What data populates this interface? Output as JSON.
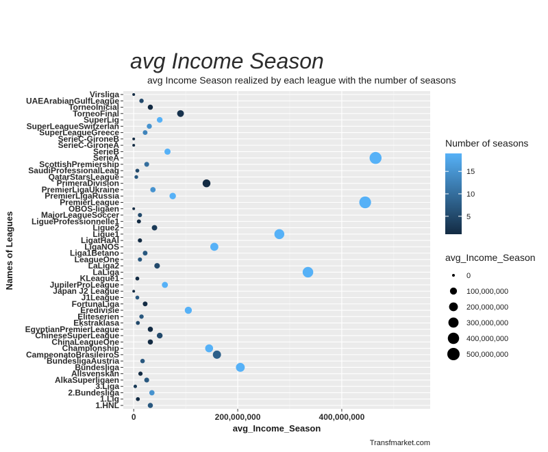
{
  "chart_data": {
    "type": "scatter",
    "title": "avg Income Season",
    "subtitle": "avg Income Season realized by each league with the number of seasons",
    "xlabel": "avg_Income_Season",
    "ylabel": "Names of Leagues",
    "caption": "Transfmarket.com",
    "xlim": [
      -20000000,
      570000000
    ],
    "x_ticks": [
      0,
      200000000,
      400000000
    ],
    "x_tick_labels": [
      "0",
      "200,000,000",
      "400,000,000"
    ],
    "grid": true,
    "legend_position": "right",
    "color_legend": {
      "title": "Number of seasons",
      "range": [
        1,
        19
      ],
      "ticks": [
        5,
        10,
        15
      ],
      "tick_labels": [
        "5",
        "10",
        "15"
      ],
      "low_color": "#132B43",
      "high_color": "#56B1F7"
    },
    "size_legend": {
      "title": "avg_Income_Season",
      "values": [
        0,
        100000000,
        200000000,
        300000000,
        400000000,
        500000000
      ],
      "labels": [
        "0",
        "100,000,000",
        "200,000,000",
        "300,000,000",
        "400,000,000",
        "500,000,000"
      ]
    },
    "points": [
      {
        "league": "Virsliga",
        "x": 0,
        "seasons": 1
      },
      {
        "league": "UAEArabianGulfLeague",
        "x": 15000000,
        "seasons": 5
      },
      {
        "league": "TorneoInicial",
        "x": 32000000,
        "seasons": 1
      },
      {
        "league": "TorneoFinal",
        "x": 90000000,
        "seasons": 2
      },
      {
        "league": "SuperLig",
        "x": 50000000,
        "seasons": 19
      },
      {
        "league": "SuperLeagueSwitzerlan",
        "x": 30000000,
        "seasons": 15
      },
      {
        "league": "SuperLeagueGreece",
        "x": 22000000,
        "seasons": 13
      },
      {
        "league": "SerieC-GironeB",
        "x": 0,
        "seasons": 1
      },
      {
        "league": "SerieC-GironeA",
        "x": 0,
        "seasons": 1
      },
      {
        "league": "SerieB",
        "x": 65000000,
        "seasons": 19
      },
      {
        "league": "SerieA",
        "x": 465000000,
        "seasons": 19
      },
      {
        "league": "ScottishPremiership",
        "x": 25000000,
        "seasons": 10
      },
      {
        "league": "SaudiProfessionalLeag",
        "x": 7000000,
        "seasons": 5
      },
      {
        "league": "QatarStarsLeague",
        "x": 5000000,
        "seasons": 7
      },
      {
        "league": "PrimeraDivision",
        "x": 140000000,
        "seasons": 1
      },
      {
        "league": "PremierLigaUkraine",
        "x": 37000000,
        "seasons": 15
      },
      {
        "league": "PremierLigaRussia",
        "x": 75000000,
        "seasons": 19
      },
      {
        "league": "PremierLeague",
        "x": 445000000,
        "seasons": 19
      },
      {
        "league": "OBOS-ligaen",
        "x": 0,
        "seasons": 1
      },
      {
        "league": "MajorLeagueSoccer",
        "x": 12000000,
        "seasons": 5
      },
      {
        "league": "LigueProfessionnelle1",
        "x": 10000000,
        "seasons": 1
      },
      {
        "league": "Ligue2",
        "x": 40000000,
        "seasons": 3
      },
      {
        "league": "Ligue1",
        "x": 280000000,
        "seasons": 19
      },
      {
        "league": "LigatHaAl",
        "x": 12000000,
        "seasons": 1
      },
      {
        "league": "LigaNOS",
        "x": 155000000,
        "seasons": 19
      },
      {
        "league": "Liga1Betano",
        "x": 22000000,
        "seasons": 7
      },
      {
        "league": "LeagueOne",
        "x": 12000000,
        "seasons": 7
      },
      {
        "league": "LaLiga2",
        "x": 45000000,
        "seasons": 5
      },
      {
        "league": "LaLiga",
        "x": 335000000,
        "seasons": 19
      },
      {
        "league": "KLeague1",
        "x": 7000000,
        "seasons": 1
      },
      {
        "league": "JupilerProLeague",
        "x": 60000000,
        "seasons": 19
      },
      {
        "league": "Japan J2 League",
        "x": 0,
        "seasons": 1
      },
      {
        "league": "J1League",
        "x": 7000000,
        "seasons": 7
      },
      {
        "league": "FortunaLiga",
        "x": 22000000,
        "seasons": 1
      },
      {
        "league": "Eredivisie",
        "x": 105000000,
        "seasons": 19
      },
      {
        "league": "Eliteserien",
        "x": 15000000,
        "seasons": 7
      },
      {
        "league": "Ekstraklasa",
        "x": 8000000,
        "seasons": 5
      },
      {
        "league": "EgyptianPremierLeague",
        "x": 32000000,
        "seasons": 1
      },
      {
        "league": "ChineseSuperLeague",
        "x": 50000000,
        "seasons": 5
      },
      {
        "league": "ChinaLeagueOne",
        "x": 32000000,
        "seasons": 1
      },
      {
        "league": "Championship",
        "x": 145000000,
        "seasons": 19
      },
      {
        "league": "CampeonatoBrasileiroS",
        "x": 160000000,
        "seasons": 8
      },
      {
        "league": "BundesligaAustria",
        "x": 17000000,
        "seasons": 7
      },
      {
        "league": "Bundesliga",
        "x": 205000000,
        "seasons": 19
      },
      {
        "league": "Allsvenskan",
        "x": 13000000,
        "seasons": 1
      },
      {
        "league": "AlkaSuperligaen",
        "x": 25000000,
        "seasons": 7
      },
      {
        "league": "3.Liga",
        "x": 3000000,
        "seasons": 3
      },
      {
        "league": "2.Bundesliga",
        "x": 35000000,
        "seasons": 15
      },
      {
        "league": "1.Lig",
        "x": 8000000,
        "seasons": 1
      },
      {
        "league": "1.HNL",
        "x": 32000000,
        "seasons": 7
      }
    ]
  }
}
